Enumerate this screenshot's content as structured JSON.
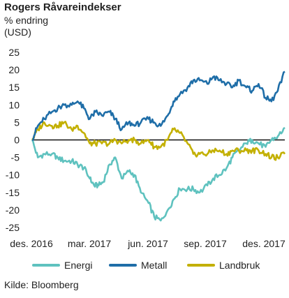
{
  "chart_data": {
    "type": "line",
    "title": "Rogers Råvareindekser",
    "subtitle": "% endring",
    "ylabel": "(USD)",
    "ylim": [
      -25,
      25
    ],
    "yticks": [
      25,
      20,
      15,
      10,
      5,
      0,
      -5,
      -10,
      -15,
      -20,
      -25
    ],
    "xticks": [
      "des. 2016",
      "mar. 2017",
      "jun. 2017",
      "sep. 2017",
      "des. 2017"
    ],
    "x_range": [
      "2016-12-01",
      "2017-12-31"
    ],
    "grid": false,
    "legend_position": "bottom",
    "source": "Kilde: Bloomberg",
    "series": [
      {
        "name": "Energi",
        "color": "#5fc2bf",
        "x": [
          "2016-12-01",
          "2016-12-10",
          "2016-12-20",
          "2017-01-01",
          "2017-01-10",
          "2017-01-20",
          "2017-02-01",
          "2017-02-10",
          "2017-02-20",
          "2017-03-01",
          "2017-03-08",
          "2017-03-15",
          "2017-03-22",
          "2017-04-01",
          "2017-04-10",
          "2017-04-20",
          "2017-05-01",
          "2017-05-10",
          "2017-05-20",
          "2017-06-01",
          "2017-06-10",
          "2017-06-20",
          "2017-07-01",
          "2017-07-10",
          "2017-07-20",
          "2017-08-01",
          "2017-08-10",
          "2017-08-20",
          "2017-09-01",
          "2017-09-10",
          "2017-09-20",
          "2017-10-01",
          "2017-10-10",
          "2017-10-20",
          "2017-11-01",
          "2017-11-10",
          "2017-11-20",
          "2017-12-01",
          "2017-12-10",
          "2017-12-20",
          "2017-12-31"
        ],
        "values": [
          0,
          -5,
          -4,
          -4,
          -5,
          -6,
          -6,
          -7,
          -8,
          -11,
          -13,
          -13,
          -12,
          -7,
          -5,
          -11,
          -9,
          -10,
          -15,
          -18,
          -22,
          -23,
          -20,
          -17,
          -14,
          -14,
          -14,
          -15,
          -13,
          -11,
          -10,
          -8,
          -5,
          -3,
          -1,
          0,
          -1,
          -2,
          0,
          1,
          3.5
        ]
      },
      {
        "name": "Metall",
        "color": "#1f6ea8",
        "x": [
          "2016-12-01",
          "2016-12-10",
          "2016-12-20",
          "2017-01-01",
          "2017-01-10",
          "2017-01-20",
          "2017-02-01",
          "2017-02-10",
          "2017-02-20",
          "2017-03-01",
          "2017-03-10",
          "2017-03-20",
          "2017-04-01",
          "2017-04-10",
          "2017-04-20",
          "2017-05-01",
          "2017-05-10",
          "2017-05-20",
          "2017-06-01",
          "2017-06-10",
          "2017-06-20",
          "2017-07-01",
          "2017-07-10",
          "2017-07-20",
          "2017-08-01",
          "2017-08-10",
          "2017-08-20",
          "2017-09-01",
          "2017-09-10",
          "2017-09-20",
          "2017-10-01",
          "2017-10-10",
          "2017-10-20",
          "2017-11-01",
          "2017-11-10",
          "2017-11-20",
          "2017-12-01",
          "2017-12-10",
          "2017-12-20",
          "2017-12-31"
        ],
        "values": [
          0,
          4,
          6,
          8,
          9,
          10,
          10,
          11,
          9,
          6,
          8,
          7,
          8,
          6,
          3,
          5,
          4,
          5,
          6,
          5,
          4,
          7,
          11,
          13,
          15,
          17,
          17,
          16,
          18,
          17,
          16,
          15,
          17,
          15,
          14,
          16,
          12,
          11,
          14,
          19.5
        ]
      },
      {
        "name": "Landbruk",
        "color": "#c3b000",
        "x": [
          "2016-12-01",
          "2016-12-10",
          "2016-12-20",
          "2017-01-01",
          "2017-01-10",
          "2017-01-20",
          "2017-02-01",
          "2017-02-10",
          "2017-02-20",
          "2017-03-01",
          "2017-03-10",
          "2017-03-20",
          "2017-04-01",
          "2017-04-10",
          "2017-04-20",
          "2017-05-01",
          "2017-05-10",
          "2017-05-20",
          "2017-06-01",
          "2017-06-10",
          "2017-06-20",
          "2017-07-01",
          "2017-07-10",
          "2017-07-20",
          "2017-08-01",
          "2017-08-10",
          "2017-08-20",
          "2017-09-01",
          "2017-09-10",
          "2017-09-20",
          "2017-10-01",
          "2017-10-10",
          "2017-10-20",
          "2017-11-01",
          "2017-11-10",
          "2017-11-20",
          "2017-12-01",
          "2017-12-10",
          "2017-12-20",
          "2017-12-31"
        ],
        "values": [
          0,
          3,
          5,
          4,
          4,
          5,
          3,
          4,
          2,
          -1,
          -1,
          -1,
          -1,
          0,
          -1,
          0,
          0,
          -1,
          0,
          -2,
          -2,
          0,
          3,
          2,
          -1,
          -4,
          -4,
          -4,
          -3,
          -3,
          -4,
          -3,
          -3,
          -3,
          -3,
          -3,
          -4,
          -5,
          -5,
          -4
        ]
      }
    ]
  }
}
